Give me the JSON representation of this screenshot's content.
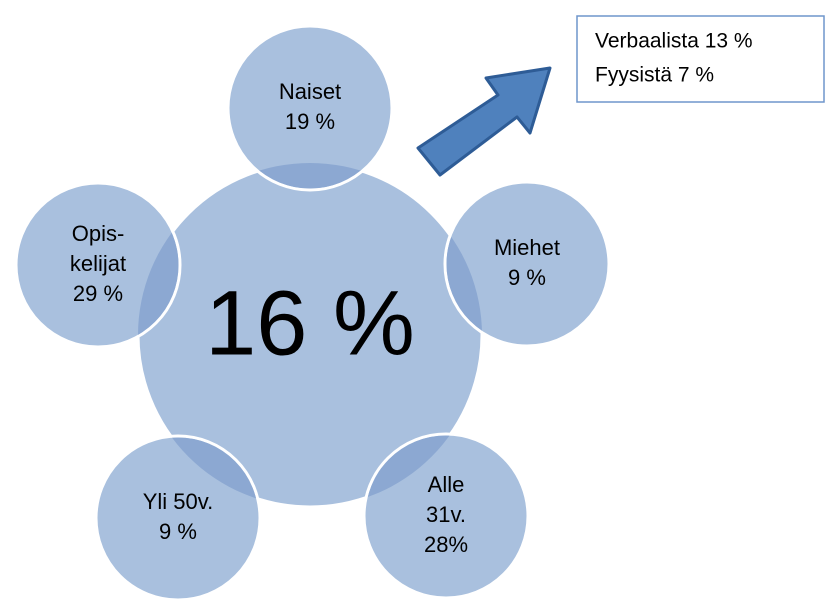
{
  "center": {
    "label": "16 %"
  },
  "nodes": [
    {
      "lines": [
        "Naiset",
        "19 %"
      ]
    },
    {
      "lines": [
        "Miehet",
        "9 %"
      ]
    },
    {
      "lines": [
        "Alle",
        "31v.",
        "28%"
      ]
    },
    {
      "lines": [
        "Yli 50v.",
        "9 %"
      ]
    },
    {
      "lines": [
        "Opis-",
        "kelijat",
        "29 %"
      ]
    }
  ],
  "callout": {
    "lines": [
      "Verbaalista 13 %",
      "Fyysistä 7 %"
    ]
  }
}
